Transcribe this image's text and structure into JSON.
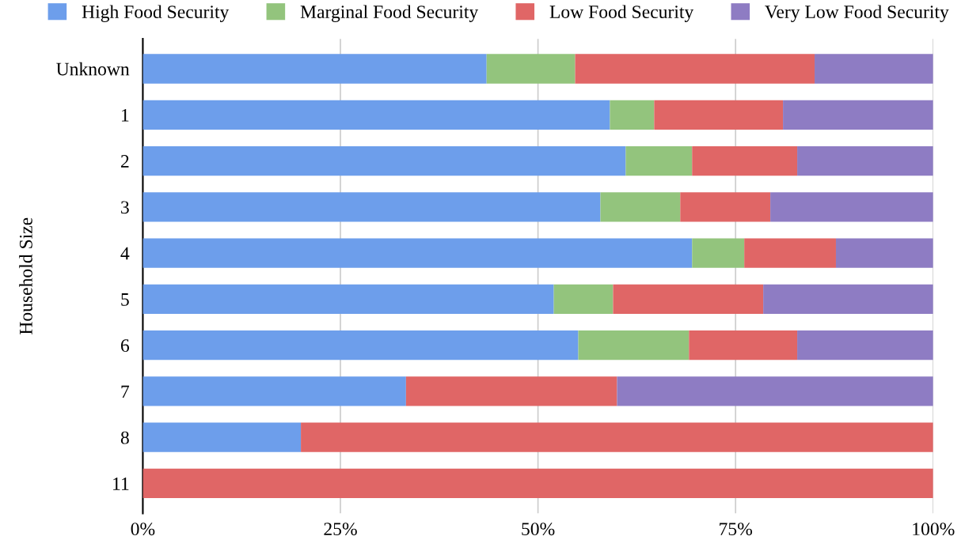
{
  "chart_data": {
    "type": "bar",
    "orientation": "horizontal",
    "stacked": true,
    "ylabel": "Household Size",
    "categories": [
      "Unknown",
      "1",
      "2",
      "3",
      "4",
      "5",
      "6",
      "7",
      "8",
      "11"
    ],
    "series": [
      {
        "name": "High Food Security",
        "color": "#6d9eeb",
        "values": [
          43.5,
          59.1,
          61.1,
          57.9,
          69.5,
          52.0,
          55.1,
          33.3,
          20.0,
          0
        ]
      },
      {
        "name": "Marginal Food Security",
        "color": "#93c47d",
        "values": [
          11.2,
          5.6,
          8.4,
          10.1,
          6.6,
          7.5,
          14.0,
          0,
          0,
          0
        ]
      },
      {
        "name": "Low Food Security",
        "color": "#e06666",
        "values": [
          30.3,
          16.3,
          13.3,
          11.4,
          11.6,
          19.0,
          13.7,
          26.7,
          80.0,
          100
        ]
      },
      {
        "name": "Very Low Food Security",
        "color": "#8e7cc3",
        "values": [
          15.0,
          19.0,
          17.2,
          20.6,
          12.3,
          21.5,
          17.2,
          40.0,
          0,
          0
        ]
      }
    ],
    "xlim": [
      0,
      100
    ],
    "xticks": [
      {
        "value": 0,
        "label": "0%"
      },
      {
        "value": 25,
        "label": "25%"
      },
      {
        "value": 50,
        "label": "50%"
      },
      {
        "value": 75,
        "label": "75%"
      },
      {
        "value": 100,
        "label": "100%"
      }
    ],
    "grid": "x",
    "legend": "top"
  }
}
